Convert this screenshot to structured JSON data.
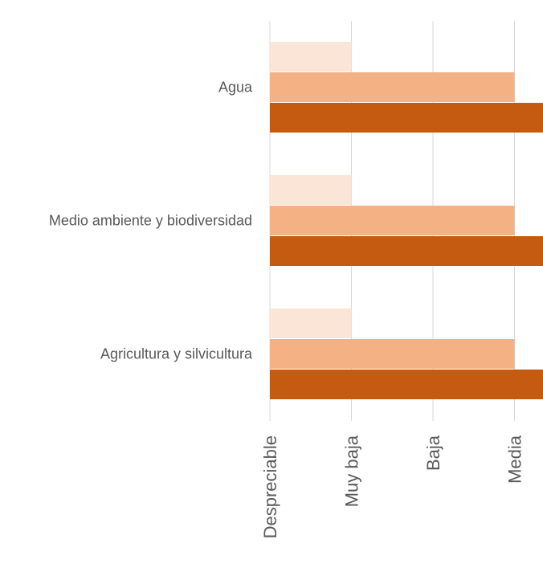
{
  "chart_data": {
    "type": "bar",
    "orientation": "horizontal",
    "categories": [
      "Agua",
      "Medio ambiente y biodiversidad",
      "Agricultura y silvicultura"
    ],
    "x_ticks": [
      "Despreciable",
      "Muy baja",
      "Baja",
      "Media"
    ],
    "series": [
      {
        "color": "#fbe5d6",
        "values": [
          1,
          1,
          1
        ]
      },
      {
        "color": "#f4b183",
        "values": [
          3,
          3,
          3
        ]
      },
      {
        "color": "#c55a11",
        "values": [
          3.35,
          3.35,
          3.35
        ]
      }
    ],
    "xlim": [
      0,
      3.35
    ],
    "grid": true,
    "legend": "none"
  }
}
